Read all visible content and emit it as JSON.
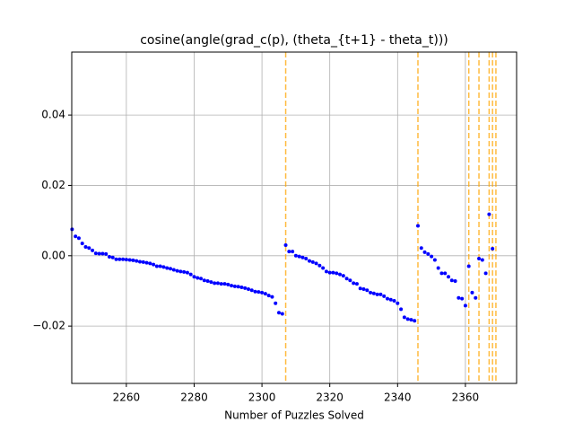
{
  "chart_data": {
    "type": "scatter",
    "title": "cosine(angle(grad_c(p), (theta_{t+1} - theta_t)))",
    "x_label": "Number of Puzzles Solved",
    "color": "#0000ff",
    "x": [
      2244,
      2245,
      2246,
      2247,
      2248,
      2249,
      2250,
      2251,
      2252,
      2253,
      2254,
      2255,
      2256,
      2257,
      2258,
      2259,
      2260,
      2261,
      2262,
      2263,
      2264,
      2265,
      2266,
      2267,
      2268,
      2269,
      2270,
      2271,
      2272,
      2273,
      2274,
      2275,
      2276,
      2277,
      2278,
      2279,
      2280,
      2281,
      2282,
      2283,
      2284,
      2285,
      2286,
      2287,
      2288,
      2289,
      2290,
      2291,
      2292,
      2293,
      2294,
      2295,
      2296,
      2297,
      2298,
      2299,
      2300,
      2301,
      2302,
      2303,
      2304,
      2305,
      2306,
      2307,
      2308,
      2309,
      2310,
      2311,
      2312,
      2313,
      2314,
      2315,
      2316,
      2317,
      2318,
      2319,
      2320,
      2321,
      2322,
      2323,
      2324,
      2325,
      2326,
      2327,
      2328,
      2329,
      2330,
      2331,
      2332,
      2333,
      2334,
      2335,
      2336,
      2337,
      2338,
      2339,
      2340,
      2341,
      2342,
      2343,
      2344,
      2345,
      2346,
      2347,
      2348,
      2349,
      2350,
      2351,
      2352,
      2353,
      2354,
      2355,
      2356,
      2357,
      2358,
      2359,
      2360,
      2361,
      2362,
      2363,
      2364,
      2365,
      2366,
      2367,
      2368
    ],
    "y": [
      0.0075,
      0.0055,
      0.005,
      0.0035,
      0.0025,
      0.0022,
      0.0015,
      0.0007,
      0.0006,
      0.0006,
      0.0005,
      -0.0003,
      -0.0005,
      -0.001,
      -0.001,
      -0.001,
      -0.0011,
      -0.0012,
      -0.0013,
      -0.0015,
      -0.0017,
      -0.0018,
      -0.002,
      -0.0022,
      -0.0025,
      -0.003,
      -0.003,
      -0.0032,
      -0.0035,
      -0.0037,
      -0.004,
      -0.0043,
      -0.0045,
      -0.0046,
      -0.0048,
      -0.0053,
      -0.006,
      -0.0063,
      -0.0065,
      -0.007,
      -0.0072,
      -0.0075,
      -0.0078,
      -0.0078,
      -0.008,
      -0.008,
      -0.0082,
      -0.0085,
      -0.0087,
      -0.0088,
      -0.009,
      -0.0092,
      -0.0095,
      -0.0098,
      -0.0102,
      -0.0103,
      -0.0105,
      -0.0108,
      -0.0113,
      -0.0117,
      -0.0135,
      -0.0162,
      -0.0165,
      0.003,
      0.0012,
      0.0012,
      0.0,
      -0.0002,
      -0.0005,
      -0.0008,
      -0.0015,
      -0.0018,
      -0.0022,
      -0.0028,
      -0.0035,
      -0.0045,
      -0.0048,
      -0.0048,
      -0.005,
      -0.0053,
      -0.0057,
      -0.0065,
      -0.007,
      -0.0078,
      -0.008,
      -0.0093,
      -0.0095,
      -0.0098,
      -0.0105,
      -0.0107,
      -0.011,
      -0.011,
      -0.0115,
      -0.0122,
      -0.0125,
      -0.0128,
      -0.0135,
      -0.0152,
      -0.0175,
      -0.018,
      -0.0182,
      -0.0185,
      0.0085,
      0.0022,
      0.001,
      0.0005,
      -0.0002,
      -0.0012,
      -0.0035,
      -0.005,
      -0.005,
      -0.006,
      -0.007,
      -0.0072,
      -0.012,
      -0.0122,
      -0.0142,
      -0.003,
      -0.0105,
      -0.012,
      -0.0008,
      -0.0012,
      -0.005,
      0.0118,
      0.002
    ],
    "vlines": [
      2307,
      2346,
      2361,
      2364,
      2367,
      2368,
      2369
    ],
    "vline_color": "#ffa500",
    "xlim": [
      2243.9,
      2375.1
    ],
    "ylim": [
      -0.0363,
      0.0579
    ],
    "xticks": [
      2260,
      2280,
      2300,
      2320,
      2340,
      2360
    ],
    "yticks": [
      {
        "value": -0.02,
        "label": "−0.02"
      },
      {
        "value": 0,
        "label": "0.00"
      },
      {
        "value": 0.02,
        "label": "0.02"
      },
      {
        "value": 0.04,
        "label": "0.04"
      }
    ],
    "grid": true
  }
}
